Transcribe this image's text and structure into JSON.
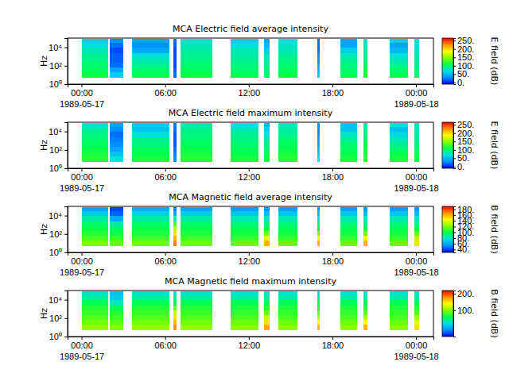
{
  "chart_data": [
    {
      "type": "heatmap",
      "title": "MCA  Electric field average intensity",
      "y_label": "Hz",
      "log": "y",
      "xlim": [
        "1989-05-16T23:00",
        "1989-05-18T01:15"
      ],
      "xticks": [
        {
          "value": "1989-05-17T00:00",
          "label": "00:00\n1989-05-17"
        },
        {
          "value": "1989-05-17T06:00",
          "label": "06:00"
        },
        {
          "value": "1989-05-17T12:00",
          "label": "12:00"
        },
        {
          "value": "1989-05-17T18:00",
          "label": "18:00"
        },
        {
          "value": "1989-05-18T00:00",
          "label": "00:00\n1989-05-18"
        }
      ],
      "ylim": [
        1,
        100000
      ],
      "yticks": [
        {
          "value": 1,
          "label": "10⁰"
        },
        {
          "value": 100,
          "label": "10²"
        },
        {
          "value": 10000,
          "label": "10⁴"
        }
      ],
      "x_bins": [
        [
          "1989-05-17T00:00",
          "1989-05-17T01:54"
        ],
        [
          "1989-05-17T02:00",
          "1989-05-17T03:00"
        ],
        [
          "1989-05-17T03:36",
          "1989-05-17T06:18"
        ],
        [
          "1989-05-17T06:36",
          "1989-05-17T06:48"
        ],
        [
          "1989-05-17T07:06",
          "1989-05-17T09:24"
        ],
        [
          "1989-05-17T10:42",
          "1989-05-17T12:42"
        ],
        [
          "1989-05-17T13:06",
          "1989-05-17T13:30"
        ],
        [
          "1989-05-17T14:06",
          "1989-05-17T15:30"
        ],
        [
          "1989-05-17T16:54",
          "1989-05-17T17:06"
        ],
        [
          "1989-05-17T18:36",
          "1989-05-17T19:48"
        ],
        [
          "1989-05-17T20:12",
          "1989-05-17T20:30"
        ],
        [
          "1989-05-17T22:06",
          "1989-05-17T23:24"
        ],
        [
          "1989-05-17T23:54",
          "1989-05-18T00:12"
        ]
      ],
      "y_bins": [
        5,
        18,
        60,
        200,
        700,
        2500,
        9000,
        30000,
        75000
      ],
      "cells": [
        [
          110,
          105,
          100,
          95,
          90,
          80,
          70,
          60
        ],
        [
          60,
          40,
          20,
          15,
          15,
          10,
          20,
          30
        ],
        [
          105,
          100,
          90,
          80,
          70,
          40,
          30,
          40
        ],
        [
          20,
          15,
          10,
          10,
          10,
          10,
          15,
          20
        ],
        [
          110,
          105,
          100,
          95,
          90,
          85,
          80,
          75
        ],
        [
          105,
          100,
          95,
          90,
          85,
          80,
          70,
          60
        ],
        [
          100,
          95,
          90,
          85,
          75,
          60,
          50,
          40
        ],
        [
          110,
          105,
          100,
          95,
          90,
          80,
          75,
          70
        ],
        [
          60,
          50,
          40,
          30,
          30,
          20,
          20,
          20
        ],
        [
          105,
          100,
          95,
          90,
          80,
          60,
          40,
          40
        ],
        [
          110,
          105,
          100,
          95,
          90,
          85,
          80,
          75
        ],
        [
          105,
          100,
          90,
          80,
          70,
          50,
          40,
          60
        ],
        [
          100,
          95,
          90,
          85,
          80,
          75,
          70,
          70
        ]
      ],
      "colorbar": {
        "label": "E field (dB)",
        "range": [
          -10,
          265
        ],
        "ticks": [
          {
            "value": 0,
            "label": "0."
          },
          {
            "value": 50,
            "label": "50."
          },
          {
            "value": 100,
            "label": "100."
          },
          {
            "value": 150,
            "label": "150."
          },
          {
            "value": 200,
            "label": "200."
          },
          {
            "value": 250,
            "label": "250."
          }
        ]
      }
    },
    {
      "type": "heatmap",
      "title": "MCA  Electric field maximum intensity",
      "y_label": "Hz",
      "log": "y",
      "xlim": [
        "1989-05-16T23:00",
        "1989-05-18T01:15"
      ],
      "xticks": [
        {
          "value": "1989-05-17T00:00",
          "label": "00:00\n1989-05-17"
        },
        {
          "value": "1989-05-17T06:00",
          "label": "06:00"
        },
        {
          "value": "1989-05-17T12:00",
          "label": "12:00"
        },
        {
          "value": "1989-05-17T18:00",
          "label": "18:00"
        },
        {
          "value": "1989-05-18T00:00",
          "label": "00:00\n1989-05-18"
        }
      ],
      "ylim": [
        1,
        100000
      ],
      "yticks": [
        {
          "value": 1,
          "label": "10⁰"
        },
        {
          "value": 100,
          "label": "10²"
        },
        {
          "value": 10000,
          "label": "10⁴"
        }
      ],
      "x_bins": [
        [
          "1989-05-17T00:00",
          "1989-05-17T01:54"
        ],
        [
          "1989-05-17T02:00",
          "1989-05-17T03:00"
        ],
        [
          "1989-05-17T03:36",
          "1989-05-17T06:18"
        ],
        [
          "1989-05-17T06:36",
          "1989-05-17T06:48"
        ],
        [
          "1989-05-17T07:06",
          "1989-05-17T09:24"
        ],
        [
          "1989-05-17T10:42",
          "1989-05-17T12:42"
        ],
        [
          "1989-05-17T13:06",
          "1989-05-17T13:30"
        ],
        [
          "1989-05-17T14:06",
          "1989-05-17T15:30"
        ],
        [
          "1989-05-17T16:54",
          "1989-05-17T17:06"
        ],
        [
          "1989-05-17T18:36",
          "1989-05-17T19:48"
        ],
        [
          "1989-05-17T20:12",
          "1989-05-17T20:30"
        ],
        [
          "1989-05-17T22:06",
          "1989-05-17T23:24"
        ],
        [
          "1989-05-17T23:54",
          "1989-05-18T00:12"
        ]
      ],
      "y_bins": [
        5,
        18,
        60,
        200,
        700,
        2500,
        9000,
        30000,
        75000
      ],
      "cells": [
        [
          120,
          115,
          110,
          105,
          100,
          95,
          85,
          75
        ],
        [
          70,
          55,
          40,
          30,
          25,
          20,
          30,
          40
        ],
        [
          115,
          110,
          105,
          95,
          90,
          70,
          55,
          60
        ],
        [
          30,
          25,
          20,
          15,
          15,
          15,
          20,
          25
        ],
        [
          120,
          115,
          110,
          105,
          100,
          95,
          90,
          85
        ],
        [
          115,
          110,
          105,
          100,
          95,
          90,
          80,
          70
        ],
        [
          110,
          105,
          100,
          95,
          85,
          70,
          60,
          50
        ],
        [
          120,
          115,
          110,
          105,
          100,
          90,
          85,
          80
        ],
        [
          70,
          60,
          50,
          40,
          40,
          30,
          30,
          30
        ],
        [
          115,
          110,
          105,
          100,
          90,
          75,
          55,
          55
        ],
        [
          120,
          115,
          110,
          105,
          100,
          95,
          90,
          85
        ],
        [
          115,
          110,
          100,
          90,
          80,
          65,
          55,
          70
        ],
        [
          110,
          105,
          100,
          95,
          90,
          85,
          80,
          80
        ]
      ],
      "colorbar": {
        "label": "E field (dB)",
        "range": [
          -10,
          265
        ],
        "ticks": [
          {
            "value": 0,
            "label": "0."
          },
          {
            "value": 50,
            "label": "50."
          },
          {
            "value": 100,
            "label": "100."
          },
          {
            "value": 150,
            "label": "150."
          },
          {
            "value": 200,
            "label": "200."
          },
          {
            "value": 250,
            "label": "250."
          }
        ]
      }
    },
    {
      "type": "heatmap",
      "title": "MCA  Magnetic field average intensity",
      "y_label": "Hz",
      "log": "y",
      "xlim": [
        "1989-05-16T23:00",
        "1989-05-18T01:15"
      ],
      "xticks": [
        {
          "value": "1989-05-17T00:00",
          "label": "00:00\n1989-05-17"
        },
        {
          "value": "1989-05-17T06:00",
          "label": "06:00"
        },
        {
          "value": "1989-05-17T12:00",
          "label": "12:00"
        },
        {
          "value": "1989-05-17T18:00",
          "label": "18:00"
        },
        {
          "value": "1989-05-18T00:00",
          "label": "00:00\n1989-05-18"
        }
      ],
      "ylim": [
        1,
        100000
      ],
      "yticks": [
        {
          "value": 1,
          "label": "10⁰"
        },
        {
          "value": 100,
          "label": "10²"
        },
        {
          "value": 10000,
          "label": "10⁴"
        }
      ],
      "x_bins": [
        [
          "1989-05-17T00:00",
          "1989-05-17T01:54"
        ],
        [
          "1989-05-17T02:00",
          "1989-05-17T03:00"
        ],
        [
          "1989-05-17T03:36",
          "1989-05-17T06:18"
        ],
        [
          "1989-05-17T06:36",
          "1989-05-17T06:48"
        ],
        [
          "1989-05-17T07:06",
          "1989-05-17T09:24"
        ],
        [
          "1989-05-17T10:42",
          "1989-05-17T12:42"
        ],
        [
          "1989-05-17T13:06",
          "1989-05-17T13:30"
        ],
        [
          "1989-05-17T14:06",
          "1989-05-17T15:30"
        ],
        [
          "1989-05-17T16:54",
          "1989-05-17T17:06"
        ],
        [
          "1989-05-17T18:36",
          "1989-05-17T19:48"
        ],
        [
          "1989-05-17T20:12",
          "1989-05-17T20:30"
        ],
        [
          "1989-05-17T22:06",
          "1989-05-17T23:24"
        ],
        [
          "1989-05-17T23:54",
          "1989-05-18T00:12"
        ]
      ],
      "y_bins": [
        5,
        18,
        60,
        200,
        700,
        2500,
        9000,
        30000,
        75000
      ],
      "cells": [
        [
          120,
          112,
          105,
          100,
          95,
          85,
          70,
          60
        ],
        [
          115,
          108,
          100,
          95,
          85,
          60,
          45,
          40
        ],
        [
          118,
          110,
          104,
          100,
          95,
          85,
          72,
          62
        ],
        [
          170,
          160,
          150,
          130,
          110,
          80,
          60,
          50
        ],
        [
          118,
          110,
          104,
          100,
          95,
          85,
          70,
          60
        ],
        [
          116,
          108,
          102,
          98,
          92,
          82,
          68,
          58
        ],
        [
          160,
          140,
          120,
          100,
          92,
          80,
          66,
          56
        ],
        [
          116,
          108,
          102,
          98,
          92,
          82,
          68,
          58
        ],
        [
          160,
          140,
          120,
          100,
          90,
          78,
          64,
          55
        ],
        [
          116,
          108,
          102,
          98,
          92,
          82,
          68,
          58
        ],
        [
          160,
          140,
          118,
          100,
          90,
          80,
          66,
          56
        ],
        [
          116,
          108,
          102,
          98,
          92,
          82,
          68,
          58
        ],
        [
          150,
          130,
          115,
          100,
          90,
          80,
          66,
          56
        ]
      ],
      "colorbar": {
        "label": "B field (dB)",
        "range": [
          30,
          190
        ],
        "ticks": [
          {
            "value": 40,
            "label": "40."
          },
          {
            "value": 60,
            "label": "60."
          },
          {
            "value": 80,
            "label": "80."
          },
          {
            "value": 100,
            "label": "100."
          },
          {
            "value": 120,
            "label": "120."
          },
          {
            "value": 140,
            "label": "140."
          },
          {
            "value": 160,
            "label": "160."
          },
          {
            "value": 180,
            "label": "180."
          }
        ]
      }
    },
    {
      "type": "heatmap",
      "title": "MCA  Magnetic field maximum intensity",
      "y_label": "Hz",
      "log": "y",
      "xlim": [
        "1989-05-16T23:00",
        "1989-05-18T01:15"
      ],
      "xticks": [
        {
          "value": "1989-05-17T00:00",
          "label": "00:00\n1989-05-17"
        },
        {
          "value": "1989-05-17T06:00",
          "label": "06:00"
        },
        {
          "value": "1989-05-17T12:00",
          "label": "12:00"
        },
        {
          "value": "1989-05-17T18:00",
          "label": "18:00"
        },
        {
          "value": "1989-05-18T00:00",
          "label": "00:00\n1989-05-18"
        }
      ],
      "ylim": [
        1,
        100000
      ],
      "yticks": [
        {
          "value": 1,
          "label": "10⁰"
        },
        {
          "value": 100,
          "label": "10²"
        },
        {
          "value": 10000,
          "label": "10⁴"
        }
      ],
      "x_bins": [
        [
          "1989-05-17T00:00",
          "1989-05-17T01:54"
        ],
        [
          "1989-05-17T02:00",
          "1989-05-17T03:00"
        ],
        [
          "1989-05-17T03:36",
          "1989-05-17T06:18"
        ],
        [
          "1989-05-17T06:36",
          "1989-05-17T06:48"
        ],
        [
          "1989-05-17T07:06",
          "1989-05-17T09:24"
        ],
        [
          "1989-05-17T10:42",
          "1989-05-17T12:42"
        ],
        [
          "1989-05-17T13:06",
          "1989-05-17T13:30"
        ],
        [
          "1989-05-17T14:06",
          "1989-05-17T15:30"
        ],
        [
          "1989-05-17T16:54",
          "1989-05-17T17:06"
        ],
        [
          "1989-05-17T18:36",
          "1989-05-17T19:48"
        ],
        [
          "1989-05-17T20:12",
          "1989-05-17T20:30"
        ],
        [
          "1989-05-17T22:06",
          "1989-05-17T23:24"
        ],
        [
          "1989-05-17T23:54",
          "1989-05-18T00:12"
        ]
      ],
      "y_bins": [
        5,
        18,
        60,
        200,
        700,
        2500,
        9000,
        30000,
        75000
      ],
      "cells": [
        [
          105,
          95,
          85,
          78,
          72,
          60,
          40,
          25
        ],
        [
          100,
          90,
          80,
          70,
          55,
          30,
          10,
          5
        ],
        [
          105,
          95,
          85,
          78,
          72,
          60,
          40,
          25
        ],
        [
          180,
          165,
          150,
          120,
          90,
          60,
          40,
          25
        ],
        [
          105,
          95,
          85,
          78,
          72,
          60,
          40,
          25
        ],
        [
          103,
          93,
          83,
          76,
          70,
          58,
          38,
          24
        ],
        [
          170,
          150,
          120,
          90,
          72,
          60,
          40,
          25
        ],
        [
          103,
          93,
          83,
          76,
          70,
          58,
          38,
          24
        ],
        [
          165,
          140,
          115,
          90,
          72,
          58,
          38,
          24
        ],
        [
          103,
          93,
          83,
          76,
          70,
          58,
          38,
          24
        ],
        [
          165,
          140,
          115,
          90,
          72,
          58,
          38,
          24
        ],
        [
          103,
          93,
          83,
          76,
          70,
          58,
          38,
          24
        ],
        [
          150,
          130,
          110,
          88,
          72,
          58,
          38,
          24
        ]
      ],
      "colorbar": {
        "label": "B field (dB)",
        "range": [
          -60,
          220
        ],
        "ticks": [
          {
            "value": 100,
            "label": "100."
          },
          {
            "value": 200,
            "label": "200."
          }
        ]
      }
    }
  ]
}
